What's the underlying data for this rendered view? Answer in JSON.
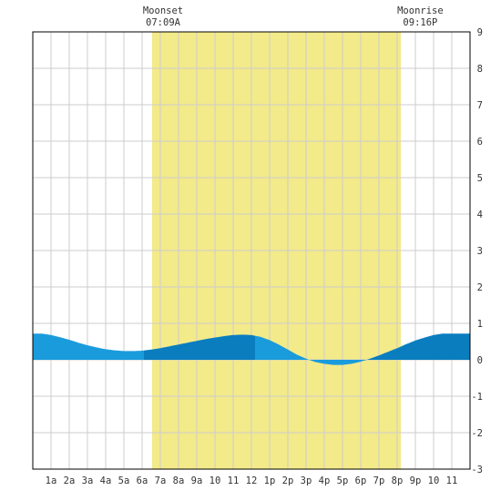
{
  "chart_data": {
    "type": "area",
    "title": "",
    "xlabel": "",
    "ylabel": "",
    "ylim": [
      -3,
      9
    ],
    "xlim": [
      0,
      24
    ],
    "grid": true,
    "x_tick_labels": [
      "1a",
      "2a",
      "3a",
      "4a",
      "5a",
      "6a",
      "7a",
      "8a",
      "9a",
      "10",
      "11",
      "12",
      "1p",
      "2p",
      "3p",
      "4p",
      "5p",
      "6p",
      "7p",
      "8p",
      "9p",
      "10",
      "11"
    ],
    "y_tick_labels": [
      "9",
      "8",
      "7",
      "6",
      "5",
      "4",
      "3",
      "2",
      "1",
      "0",
      "-1",
      "-2",
      "-3"
    ],
    "moon_events": [
      {
        "name": "Moonset",
        "time": "07:09A",
        "hour": 7.15
      },
      {
        "name": "Moonrise",
        "time": "09:16P",
        "hour": 21.27
      }
    ],
    "highlight_interval": [
      6.55,
      20.2
    ],
    "tide_curve": {
      "x": [
        0,
        0.5,
        1,
        1.5,
        2,
        2.5,
        3,
        3.5,
        4,
        4.5,
        5,
        5.5,
        6,
        6.5,
        7,
        7.5,
        8,
        8.5,
        9,
        9.5,
        10,
        10.5,
        11,
        11.5,
        12,
        12.5,
        13,
        13.5,
        14,
        14.5,
        15,
        15.5,
        16,
        16.5,
        17,
        17.5,
        18,
        18.5,
        19,
        19.5,
        20,
        20.5,
        21,
        21.5,
        22,
        22.5,
        23,
        23.5,
        24
      ],
      "y": [
        0.72,
        0.72,
        0.68,
        0.62,
        0.55,
        0.47,
        0.4,
        0.34,
        0.29,
        0.26,
        0.24,
        0.24,
        0.25,
        0.28,
        0.32,
        0.37,
        0.42,
        0.47,
        0.52,
        0.57,
        0.61,
        0.65,
        0.68,
        0.69,
        0.68,
        0.63,
        0.54,
        0.42,
        0.28,
        0.14,
        0.03,
        -0.06,
        -0.11,
        -0.14,
        -0.14,
        -0.11,
        -0.05,
        0.03,
        0.12,
        0.22,
        0.32,
        0.43,
        0.53,
        0.61,
        0.68,
        0.72,
        0.72,
        0.72,
        0.72
      ]
    },
    "colors": {
      "highlight": "#f3ea8a",
      "water_light": "#1a9bdc",
      "water_dark": "#0a7dbf",
      "grid": "#cccccc",
      "axis": "#000000"
    }
  }
}
